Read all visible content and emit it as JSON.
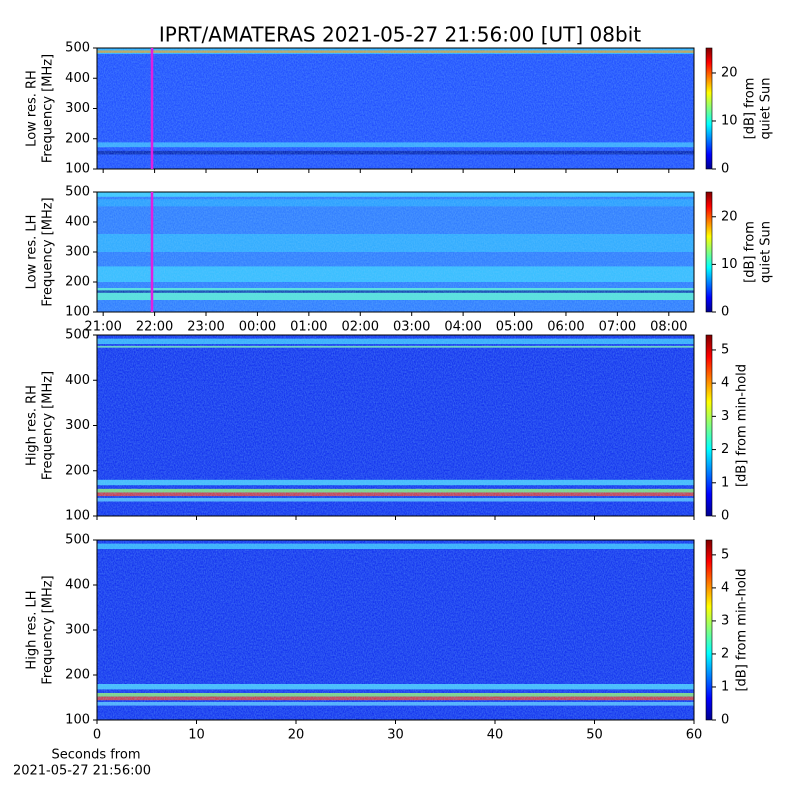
{
  "chart_data": [
    {
      "type": "spectrogram",
      "title": "IPRT/AMATERAS 2021-05-27 21:56:00 [UT]   08bit",
      "ylabel": [
        "Low res. RH",
        "Frequency [MHz]"
      ],
      "ylim": [
        100,
        500
      ],
      "yticks": [
        100,
        200,
        300,
        400,
        500
      ],
      "xlim": [
        -0.12,
        11.49
      ],
      "vline": 0.95,
      "vline_color": "#e020e0",
      "clim": [
        0,
        25.2
      ],
      "cticks": [
        0,
        10,
        20
      ],
      "clabel": [
        "[dB] from",
        "quiet Sun"
      ],
      "base_color": "#1f4cff"
    },
    {
      "type": "spectrogram",
      "ylabel": [
        "Low res. LH",
        "Frequency [MHz]"
      ],
      "ylim": [
        100,
        500
      ],
      "yticks": [
        100,
        200,
        300,
        400,
        500
      ],
      "xlim": [
        -0.12,
        11.49
      ],
      "xticks": [
        {
          "value": 0,
          "label": "21:00"
        },
        {
          "value": 1,
          "label": "22:00"
        },
        {
          "value": 2,
          "label": "23:00"
        },
        {
          "value": 3,
          "label": "00:00"
        },
        {
          "value": 4,
          "label": "01:00"
        },
        {
          "value": 5,
          "label": "02:00"
        },
        {
          "value": 6,
          "label": "03:00"
        },
        {
          "value": 7,
          "label": "04:00"
        },
        {
          "value": 8,
          "label": "05:00"
        },
        {
          "value": 9,
          "label": "06:00"
        },
        {
          "value": 10,
          "label": "07:00"
        },
        {
          "value": 11,
          "label": "08:00"
        }
      ],
      "vline": 0.95,
      "vline_color": "#e020e0",
      "clim": [
        0,
        25.2
      ],
      "cticks": [
        0,
        10,
        20
      ],
      "clabel": [
        "[dB] from",
        "quiet Sun"
      ],
      "base_color": "#2f7bff"
    },
    {
      "type": "spectrogram",
      "ylabel": [
        "High res. RH",
        "Frequency [MHz]"
      ],
      "ylim": [
        100,
        500
      ],
      "yticks": [
        100,
        200,
        300,
        400,
        500
      ],
      "xlim": [
        0,
        60
      ],
      "clim": [
        0,
        5.45
      ],
      "cticks": [
        0,
        1,
        2,
        3,
        4,
        5
      ],
      "clabel": [
        "[dB] from min-hold"
      ],
      "base_color": "#1230ee"
    },
    {
      "type": "spectrogram",
      "ylabel": [
        "High res. LH",
        "Frequency [MHz]"
      ],
      "ylim": [
        100,
        500
      ],
      "yticks": [
        100,
        200,
        300,
        400,
        500
      ],
      "xlim": [
        0,
        60
      ],
      "xticks": [
        0,
        10,
        20,
        30,
        40,
        50,
        60
      ],
      "xlabel": [
        "Seconds from",
        "2021-05-27 21:56:00"
      ],
      "clim": [
        0,
        5.45
      ],
      "cticks": [
        0,
        1,
        2,
        3,
        4,
        5
      ],
      "clabel": [
        "[dB] from min-hold"
      ],
      "base_color": "#1230ee"
    }
  ]
}
